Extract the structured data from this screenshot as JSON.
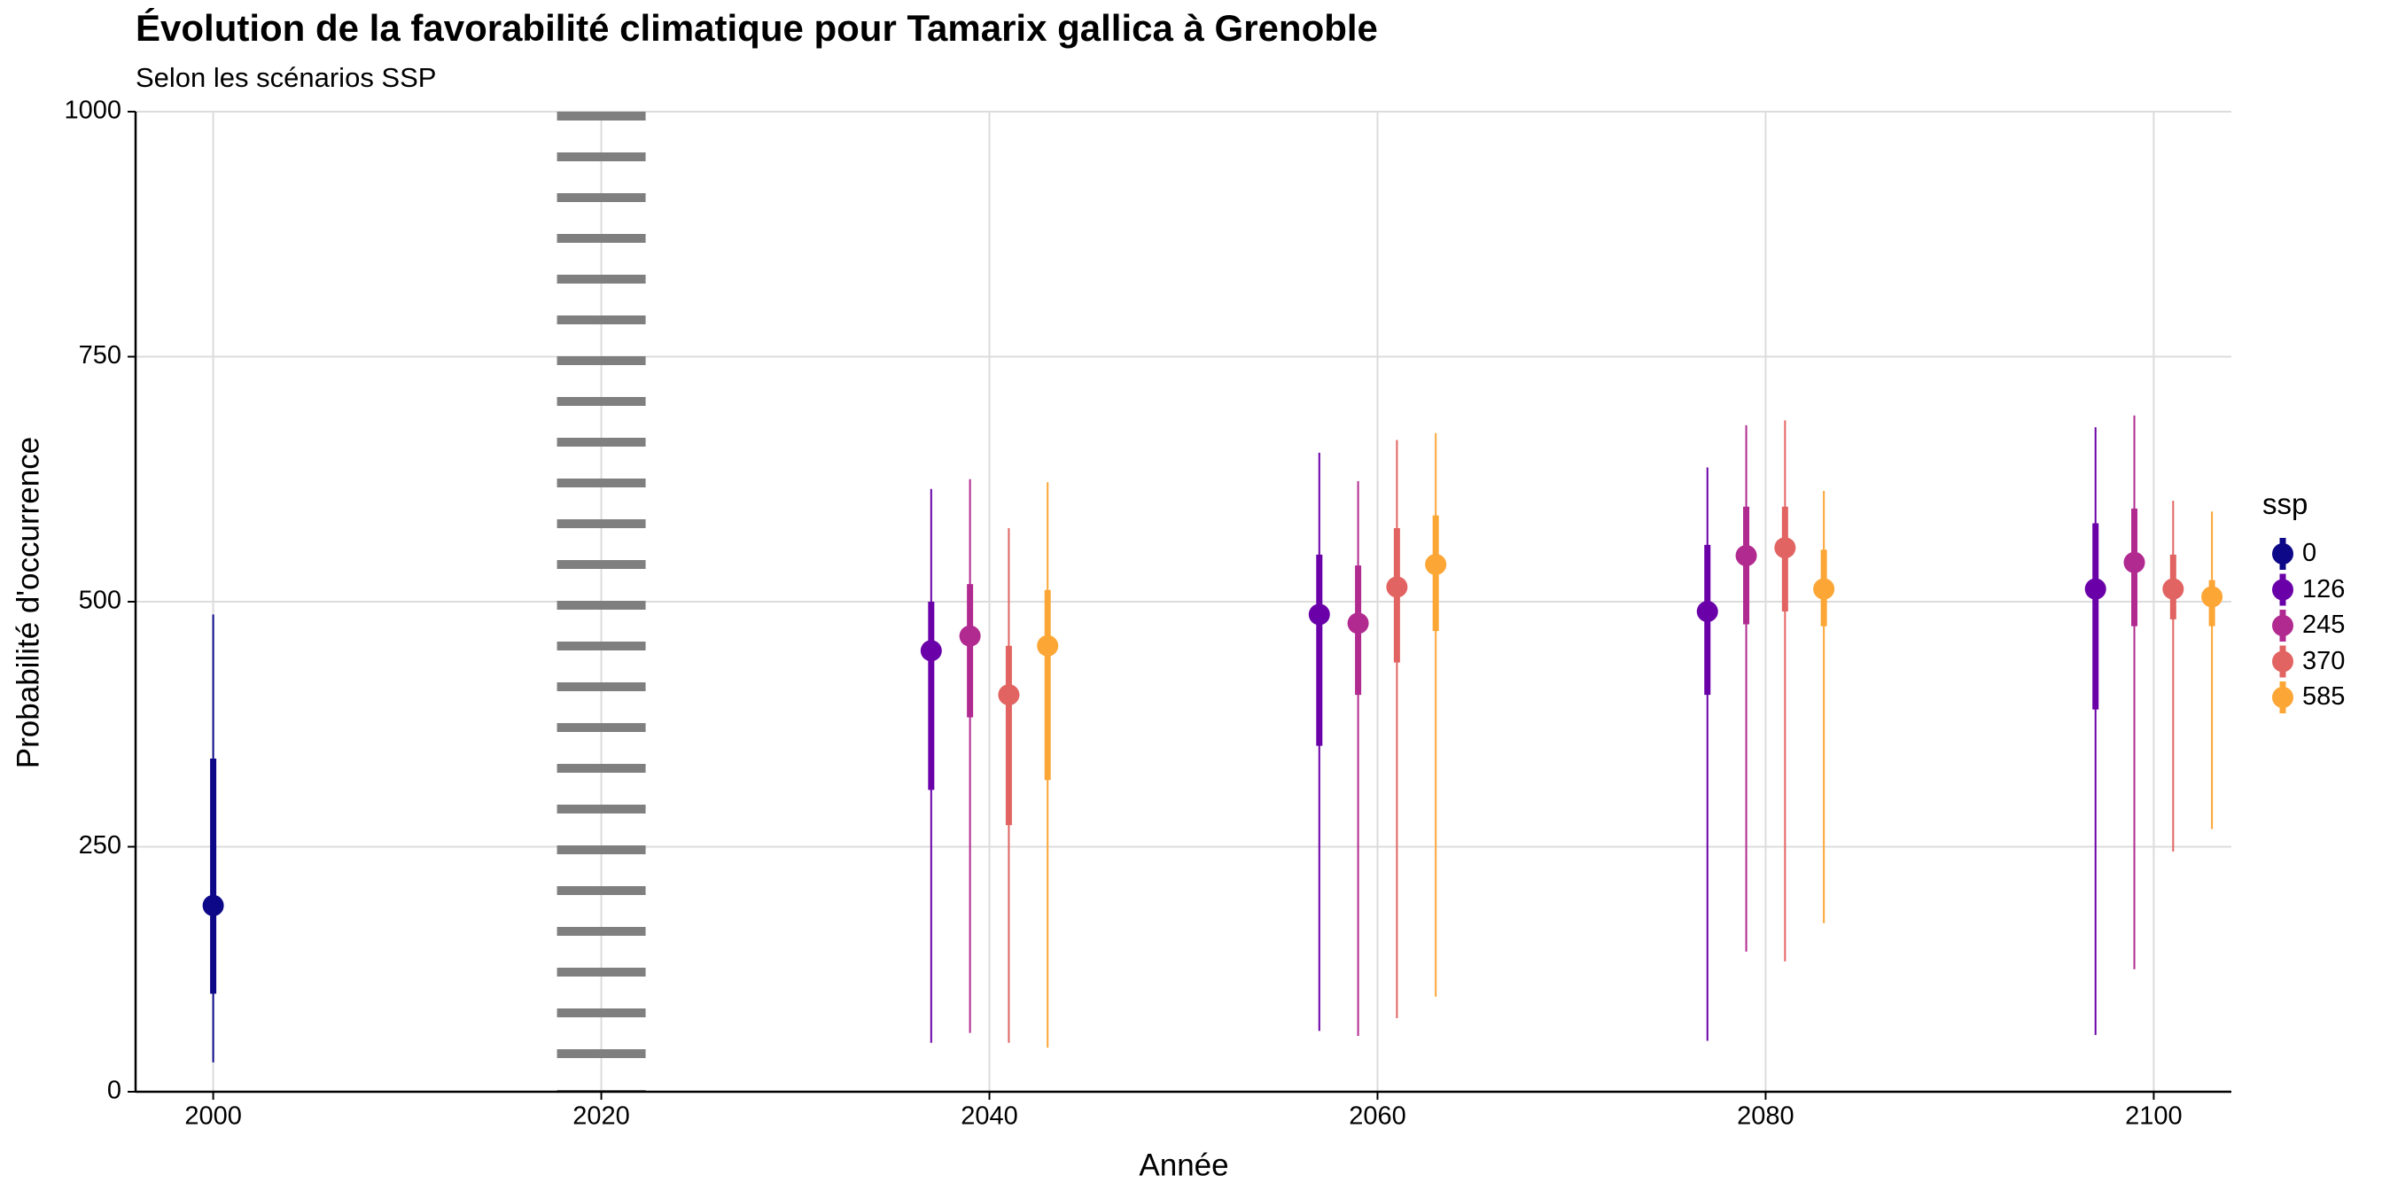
{
  "chart_data": {
    "type": "pointrange",
    "title": "Évolution de la favorabilité climatique pour Tamarix gallica à Grenoble",
    "subtitle": "Selon les scénarios SSP",
    "xlabel": "Année",
    "ylabel": "Probabilité d'occurrence",
    "xlim": [
      1996,
      2104
    ],
    "ylim": [
      0,
      1000
    ],
    "x_ticks": [
      2000,
      2020,
      2040,
      2060,
      2080,
      2100
    ],
    "y_ticks": [
      0,
      250,
      500,
      750,
      1000
    ],
    "x_tick_labels": [
      "2000",
      "2020",
      "2040",
      "2060",
      "2080",
      "2100"
    ],
    "y_tick_labels": [
      "0",
      "250",
      "500",
      "750",
      "1000"
    ],
    "grid": true,
    "reference_line": {
      "x": 2020,
      "style": "dotted"
    },
    "legend": {
      "title": "ssp",
      "placement": "right",
      "entries": [
        {
          "label": "0",
          "color": "#0D0887"
        },
        {
          "label": "126",
          "color": "#6A00A8"
        },
        {
          "label": "245",
          "color": "#B12A90"
        },
        {
          "label": "370",
          "color": "#E16462"
        },
        {
          "label": "585",
          "color": "#FCA636"
        }
      ]
    },
    "series": [
      {
        "ssp": "0",
        "color": "#0D0887",
        "points": [
          {
            "x": 2000,
            "y": 190,
            "q1": 100,
            "q3": 340,
            "min": 30,
            "max": 487
          }
        ]
      },
      {
        "ssp": "126",
        "color": "#6A00A8",
        "points": [
          {
            "x": 2037,
            "y": 450,
            "q1": 308,
            "q3": 500,
            "min": 50,
            "max": 615
          },
          {
            "x": 2057,
            "y": 487,
            "q1": 353,
            "q3": 548,
            "min": 62,
            "max": 652
          },
          {
            "x": 2077,
            "y": 490,
            "q1": 405,
            "q3": 558,
            "min": 52,
            "max": 637
          },
          {
            "x": 2097,
            "y": 513,
            "q1": 390,
            "q3": 580,
            "min": 58,
            "max": 678
          }
        ]
      },
      {
        "ssp": "245",
        "color": "#B12A90",
        "points": [
          {
            "x": 2039,
            "y": 465,
            "q1": 382,
            "q3": 518,
            "min": 60,
            "max": 625
          },
          {
            "x": 2059,
            "y": 478,
            "q1": 405,
            "q3": 537,
            "min": 57,
            "max": 623
          },
          {
            "x": 2079,
            "y": 547,
            "q1": 477,
            "q3": 597,
            "min": 143,
            "max": 680
          },
          {
            "x": 2099,
            "y": 540,
            "q1": 475,
            "q3": 595,
            "min": 125,
            "max": 690
          }
        ]
      },
      {
        "ssp": "370",
        "color": "#E16462",
        "points": [
          {
            "x": 2041,
            "y": 405,
            "q1": 272,
            "q3": 455,
            "min": 50,
            "max": 575
          },
          {
            "x": 2061,
            "y": 515,
            "q1": 438,
            "q3": 575,
            "min": 75,
            "max": 665
          },
          {
            "x": 2081,
            "y": 555,
            "q1": 490,
            "q3": 597,
            "min": 133,
            "max": 685
          },
          {
            "x": 2101,
            "y": 513,
            "q1": 482,
            "q3": 548,
            "min": 245,
            "max": 603
          }
        ]
      },
      {
        "ssp": "585",
        "color": "#FCA636",
        "points": [
          {
            "x": 2043,
            "y": 455,
            "q1": 318,
            "q3": 512,
            "min": 45,
            "max": 622
          },
          {
            "x": 2063,
            "y": 538,
            "q1": 470,
            "q3": 588,
            "min": 97,
            "max": 672
          },
          {
            "x": 2083,
            "y": 513,
            "q1": 475,
            "q3": 553,
            "min": 172,
            "max": 613
          },
          {
            "x": 2103,
            "y": 505,
            "q1": 475,
            "q3": 522,
            "min": 268,
            "max": 592
          }
        ]
      }
    ]
  }
}
